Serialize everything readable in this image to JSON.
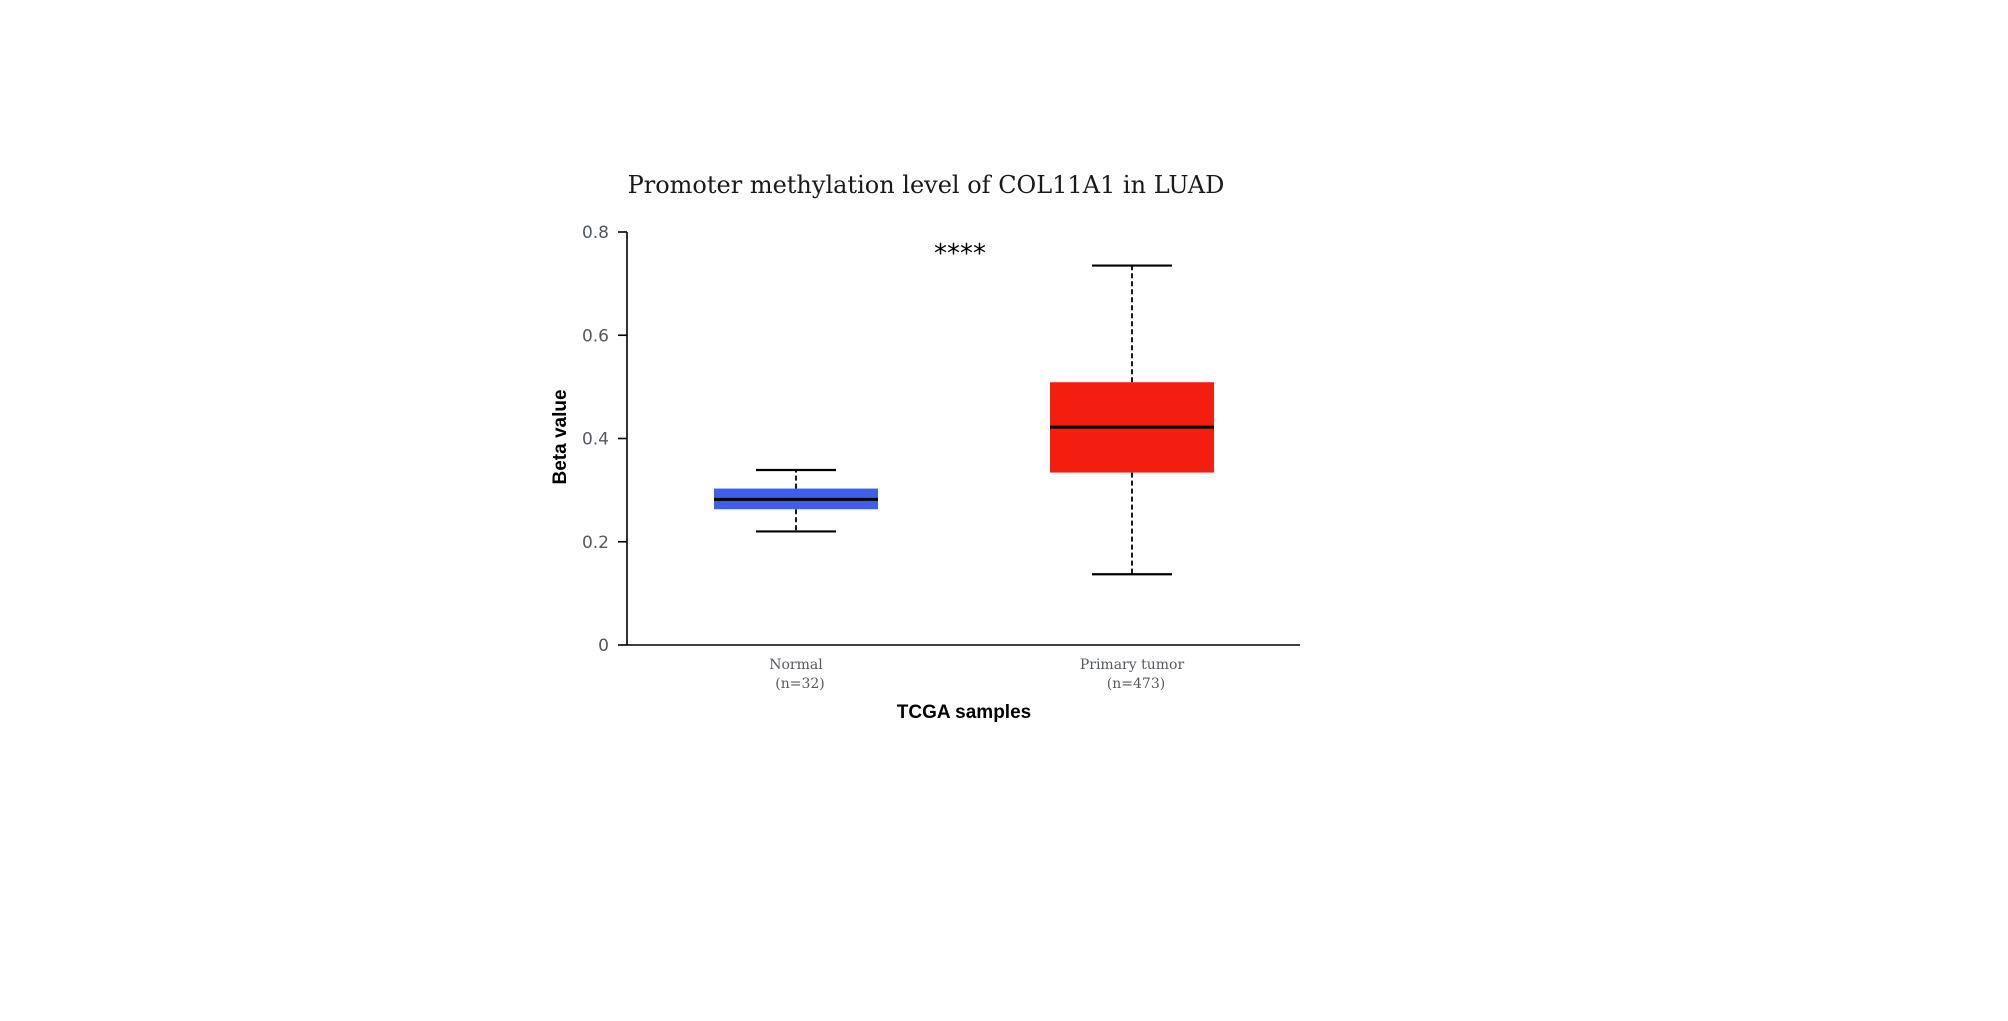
{
  "chart_data": {
    "type": "box",
    "title": "Promoter methylation level of COL11A1 in LUAD",
    "xlabel": "TCGA samples",
    "ylabel": "Beta value",
    "ylim": [
      0,
      0.8
    ],
    "yticks": [
      0,
      0.2,
      0.4,
      0.6,
      0.8
    ],
    "ytick_labels": [
      "0",
      "0.2",
      "0.4",
      "0.6",
      "0.8"
    ],
    "grid": false,
    "significance": "****",
    "categories": [
      {
        "name": "Normal",
        "n_label": "(n=32)",
        "color": "#3f5fe6",
        "whisker_low": 0.22,
        "q1": 0.263,
        "median": 0.282,
        "q3": 0.303,
        "whisker_high": 0.339
      },
      {
        "name": "Primary tumor",
        "n_label": "(n=473)",
        "color": "#f41e10",
        "whisker_low": 0.137,
        "q1": 0.334,
        "median": 0.422,
        "q3": 0.509,
        "whisker_high": 0.735
      }
    ]
  }
}
